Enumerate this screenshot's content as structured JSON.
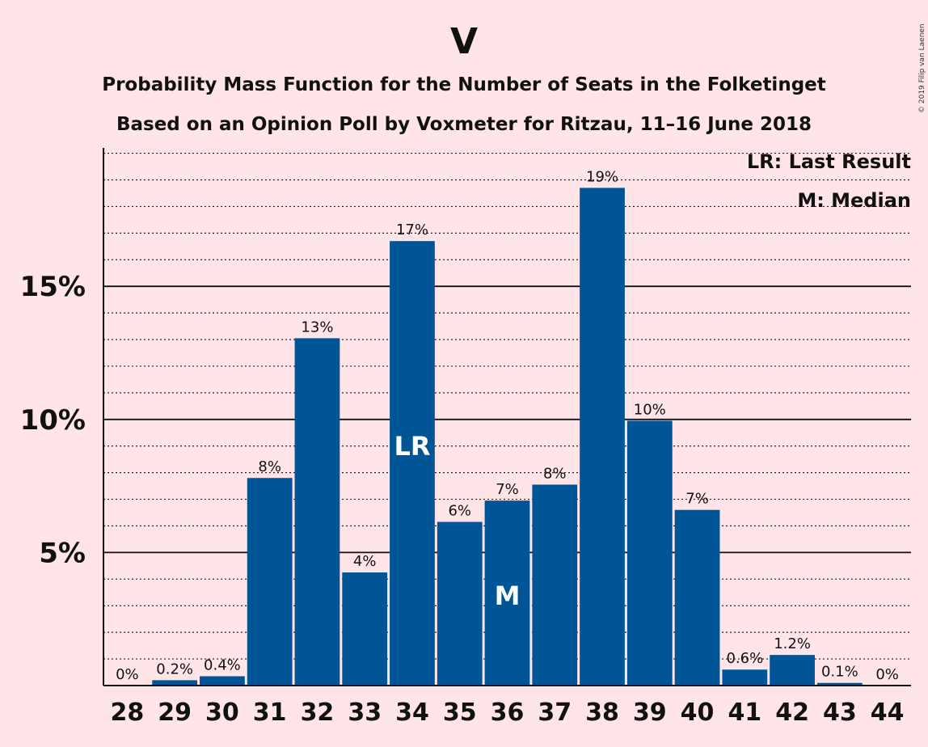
{
  "chart_data": {
    "type": "bar",
    "title": "V",
    "subtitle_1": "Probability Mass Function for the Number of Seats in the Folketinget",
    "subtitle_2": "Based on an Opinion Poll by Voxmeter for Ritzau, 11–16 June 2018",
    "legend": {
      "lr": "LR: Last Result",
      "m": "M: Median",
      "placement": "top-right"
    },
    "copyright": "© 2019 Filip van Laenen",
    "bar_color": "#005596",
    "ylim": [
      0,
      20.2
    ],
    "y_ticks": [
      {
        "value": 5,
        "label": "5%"
      },
      {
        "value": 10,
        "label": "10%"
      },
      {
        "value": 15,
        "label": "15%"
      }
    ],
    "y_minor_step": 1,
    "categories": [
      "28",
      "29",
      "30",
      "31",
      "32",
      "33",
      "34",
      "35",
      "36",
      "37",
      "38",
      "39",
      "40",
      "41",
      "42",
      "43",
      "44"
    ],
    "values": [
      0,
      0.2,
      0.35,
      7.8,
      13.05,
      4.25,
      16.7,
      6.15,
      6.95,
      7.55,
      18.7,
      9.95,
      6.6,
      0.6,
      1.15,
      0.1,
      0
    ],
    "data_labels": [
      "0%",
      "0.2%",
      "0.4%",
      "8%",
      "13%",
      "4%",
      "17%",
      "6%",
      "7%",
      "8%",
      "19%",
      "10%",
      "7%",
      "0.6%",
      "1.2%",
      "0.1%",
      "0%"
    ],
    "markers": [
      {
        "category": "34",
        "text": "LR"
      },
      {
        "category": "36",
        "text": "M"
      }
    ]
  }
}
